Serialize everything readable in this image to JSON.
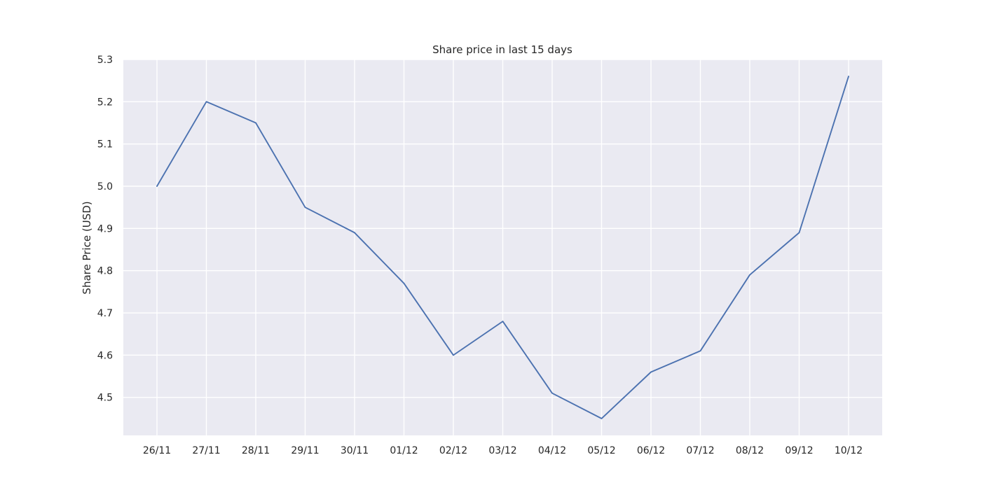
{
  "chart_data": {
    "type": "line",
    "title": "Share price in last 15 days",
    "xlabel": "",
    "ylabel": "Share Price (USD)",
    "categories": [
      "26/11",
      "27/11",
      "28/11",
      "29/11",
      "30/11",
      "01/12",
      "02/12",
      "03/12",
      "04/12",
      "05/12",
      "06/12",
      "07/12",
      "08/12",
      "09/12",
      "10/12"
    ],
    "series": [
      {
        "values": [
          5.0,
          5.2,
          5.15,
          4.95,
          4.89,
          4.77,
          4.6,
          4.68,
          4.51,
          4.45,
          4.56,
          4.61,
          4.79,
          4.89,
          5.26
        ]
      }
    ],
    "ylim": [
      4.41,
      5.3
    ],
    "yticks": [
      4.5,
      4.6,
      4.7,
      4.8,
      4.9,
      5.0,
      5.1,
      5.2,
      5.3
    ],
    "ytick_labels": [
      "4.5",
      "4.6",
      "4.7",
      "4.8",
      "4.9",
      "5.0",
      "5.1",
      "5.2",
      "5.3"
    ],
    "grid": true,
    "background": "#eaeaf2",
    "line_color": "#4c72b0"
  }
}
